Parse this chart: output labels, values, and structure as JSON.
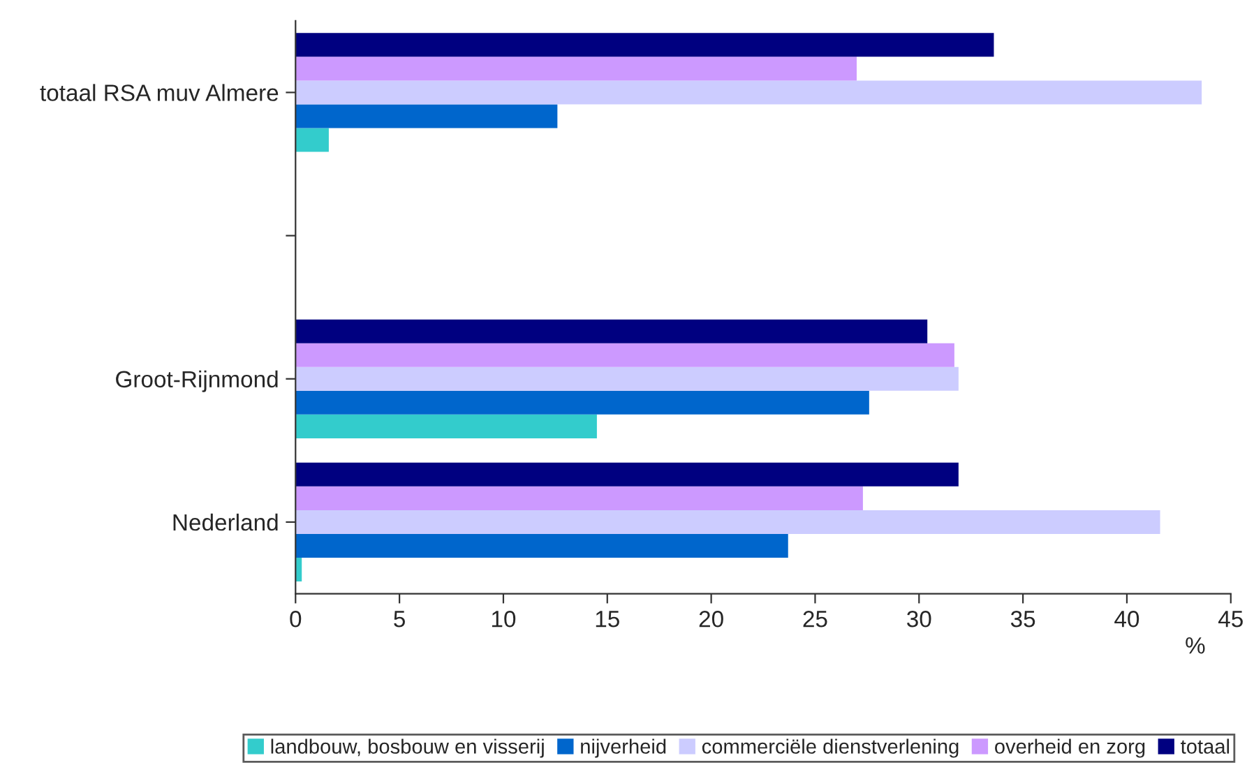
{
  "chart_data": {
    "type": "bar",
    "orientation": "horizontal",
    "categories": [
      "totaal RSA muv Almere",
      null,
      "Groot-Rijnmond",
      "Nederland"
    ],
    "series": [
      {
        "name": "landbouw, bosbouw en visserij",
        "color": "#33cccc",
        "values": [
          1.6,
          null,
          14.5,
          0.3
        ]
      },
      {
        "name": "nijverheid",
        "color": "#0066cc",
        "values": [
          12.6,
          null,
          27.6,
          23.7
        ]
      },
      {
        "name": "commerciële dienstverlening",
        "color": "#ccccff",
        "values": [
          43.6,
          null,
          31.9,
          41.6
        ]
      },
      {
        "name": "overheid en zorg",
        "color": "#cc99ff",
        "values": [
          27.0,
          null,
          31.7,
          27.3
        ]
      },
      {
        "name": "totaal",
        "color": "#000080",
        "values": [
          33.6,
          null,
          30.4,
          31.9
        ]
      }
    ],
    "xlim": [
      0,
      45
    ],
    "xticks": [
      0,
      5,
      10,
      15,
      20,
      25,
      30,
      35,
      40,
      45
    ],
    "xlabel": "%",
    "grid": false,
    "legend": "bottom"
  }
}
